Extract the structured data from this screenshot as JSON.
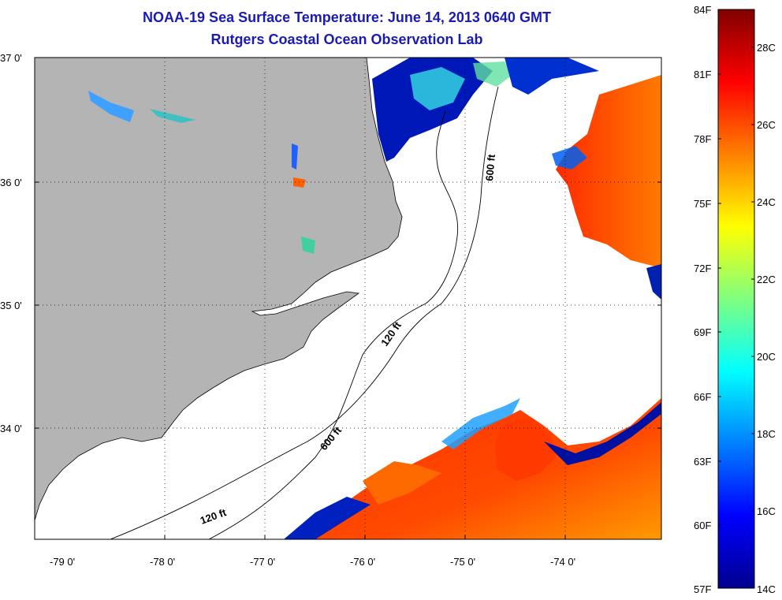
{
  "title": {
    "line1": "NOAA-19 Sea Surface Temperature:  June 14, 2013 0640 GMT",
    "line2": "Rutgers Coastal Ocean Observation Lab"
  },
  "map": {
    "lat_labels": [
      "37 0'",
      "36 0'",
      "35 0'",
      "34 0'"
    ],
    "lon_labels": [
      "-79 0'",
      "-78 0'",
      "-77 0'",
      "-76 0'",
      "-75 0'",
      "-74 0'"
    ],
    "contour_labels": [
      "600 ft",
      "120 ft",
      "600 ft",
      "120 ft"
    ],
    "colors": {
      "land": "#b4b4b4",
      "cloud": "#ffffff"
    }
  },
  "colorbar": {
    "fahrenheit": [
      "84F",
      "81F",
      "78F",
      "75F",
      "72F",
      "69F",
      "66F",
      "63F",
      "60F",
      "57F"
    ],
    "celsius": [
      "28C",
      "26C",
      "24C",
      "22C",
      "20C",
      "18C",
      "16C",
      "14C"
    ],
    "colors": [
      "#00008f",
      "#0000ff",
      "#0080ff",
      "#00ffff",
      "#80ff80",
      "#ffff00",
      "#ff8000",
      "#ff0000",
      "#800000"
    ]
  }
}
